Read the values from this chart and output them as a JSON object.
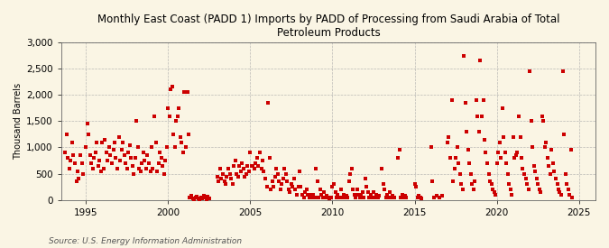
{
  "title": "Monthly East Coast (PADD 1) Imports by PADD of Processing from Saudi Arabia of Total\nPetroleum Products",
  "ylabel": "Thousand Barrels",
  "source": "Source: U.S. Energy Information Administration",
  "background_color": "#faf5e4",
  "marker_color": "#cc0000",
  "xlim": [
    1993.5,
    2026.0
  ],
  "ylim": [
    0,
    3000
  ],
  "yticks": [
    0,
    500,
    1000,
    1500,
    2000,
    2500,
    3000
  ],
  "xticks": [
    1995,
    2000,
    2005,
    2010,
    2015,
    2020,
    2025
  ],
  "data": [
    [
      1993.75,
      900
    ],
    [
      1993.83,
      1250
    ],
    [
      1993.92,
      800
    ],
    [
      1994.0,
      600
    ],
    [
      1994.08,
      750
    ],
    [
      1994.17,
      1100
    ],
    [
      1994.25,
      850
    ],
    [
      1994.33,
      700
    ],
    [
      1994.42,
      350
    ],
    [
      1994.5,
      550
    ],
    [
      1994.58,
      400
    ],
    [
      1994.67,
      850
    ],
    [
      1994.75,
      700
    ],
    [
      1994.83,
      500
    ],
    [
      1995.0,
      1000
    ],
    [
      1995.08,
      1450
    ],
    [
      1995.17,
      1250
    ],
    [
      1995.25,
      850
    ],
    [
      1995.33,
      700
    ],
    [
      1995.42,
      600
    ],
    [
      1995.5,
      800
    ],
    [
      1995.58,
      900
    ],
    [
      1995.67,
      1100
    ],
    [
      1995.75,
      650
    ],
    [
      1995.83,
      750
    ],
    [
      1995.92,
      550
    ],
    [
      1996.0,
      1100
    ],
    [
      1996.08,
      600
    ],
    [
      1996.17,
      1150
    ],
    [
      1996.25,
      900
    ],
    [
      1996.33,
      750
    ],
    [
      1996.42,
      1000
    ],
    [
      1996.5,
      850
    ],
    [
      1996.58,
      700
    ],
    [
      1996.67,
      950
    ],
    [
      1996.75,
      1100
    ],
    [
      1996.83,
      800
    ],
    [
      1996.92,
      600
    ],
    [
      1997.0,
      1200
    ],
    [
      1997.08,
      750
    ],
    [
      1997.17,
      950
    ],
    [
      1997.25,
      1100
    ],
    [
      1997.33,
      850
    ],
    [
      1997.42,
      700
    ],
    [
      1997.5,
      600
    ],
    [
      1997.58,
      900
    ],
    [
      1997.67,
      1050
    ],
    [
      1997.75,
      800
    ],
    [
      1997.83,
      650
    ],
    [
      1997.92,
      500
    ],
    [
      1998.0,
      800
    ],
    [
      1998.08,
      1500
    ],
    [
      1998.17,
      1000
    ],
    [
      1998.25,
      600
    ],
    [
      1998.33,
      550
    ],
    [
      1998.42,
      700
    ],
    [
      1998.5,
      900
    ],
    [
      1998.58,
      750
    ],
    [
      1998.67,
      600
    ],
    [
      1998.75,
      850
    ],
    [
      1998.83,
      700
    ],
    [
      1998.92,
      550
    ],
    [
      1999.0,
      1000
    ],
    [
      1999.08,
      600
    ],
    [
      1999.17,
      1600
    ],
    [
      1999.25,
      1100
    ],
    [
      1999.33,
      550
    ],
    [
      1999.42,
      700
    ],
    [
      1999.5,
      900
    ],
    [
      1999.58,
      800
    ],
    [
      1999.67,
      650
    ],
    [
      1999.75,
      500
    ],
    [
      1999.83,
      750
    ],
    [
      1999.92,
      1000
    ],
    [
      2000.0,
      1750
    ],
    [
      2000.08,
      1600
    ],
    [
      2000.17,
      2100
    ],
    [
      2000.25,
      2150
    ],
    [
      2000.33,
      1250
    ],
    [
      2000.42,
      1000
    ],
    [
      2000.5,
      1500
    ],
    [
      2000.58,
      1600
    ],
    [
      2000.67,
      1750
    ],
    [
      2000.75,
      1200
    ],
    [
      2000.83,
      1100
    ],
    [
      2000.92,
      900
    ],
    [
      2001.0,
      2050
    ],
    [
      2001.08,
      1000
    ],
    [
      2001.17,
      2050
    ],
    [
      2001.25,
      1250
    ],
    [
      2001.33,
      50
    ],
    [
      2001.42,
      80
    ],
    [
      2001.5,
      30
    ],
    [
      2001.58,
      20
    ],
    [
      2001.67,
      40
    ],
    [
      2001.75,
      60
    ],
    [
      2001.83,
      30
    ],
    [
      2001.92,
      20
    ],
    [
      2002.0,
      50
    ],
    [
      2002.08,
      30
    ],
    [
      2002.17,
      80
    ],
    [
      2002.25,
      40
    ],
    [
      2002.33,
      20
    ],
    [
      2002.42,
      60
    ],
    [
      2002.5,
      30
    ],
    [
      2003.0,
      450
    ],
    [
      2003.08,
      350
    ],
    [
      2003.17,
      600
    ],
    [
      2003.25,
      400
    ],
    [
      2003.33,
      500
    ],
    [
      2003.42,
      350
    ],
    [
      2003.5,
      300
    ],
    [
      2003.58,
      450
    ],
    [
      2003.67,
      600
    ],
    [
      2003.75,
      500
    ],
    [
      2003.83,
      400
    ],
    [
      2003.92,
      300
    ],
    [
      2004.0,
      650
    ],
    [
      2004.08,
      750
    ],
    [
      2004.17,
      500
    ],
    [
      2004.25,
      450
    ],
    [
      2004.33,
      650
    ],
    [
      2004.42,
      550
    ],
    [
      2004.5,
      700
    ],
    [
      2004.58,
      600
    ],
    [
      2004.67,
      450
    ],
    [
      2004.75,
      500
    ],
    [
      2004.83,
      650
    ],
    [
      2004.92,
      550
    ],
    [
      2005.0,
      900
    ],
    [
      2005.08,
      650
    ],
    [
      2005.17,
      650
    ],
    [
      2005.25,
      600
    ],
    [
      2005.33,
      700
    ],
    [
      2005.42,
      800
    ],
    [
      2005.5,
      650
    ],
    [
      2005.58,
      900
    ],
    [
      2005.67,
      600
    ],
    [
      2005.75,
      750
    ],
    [
      2005.83,
      550
    ],
    [
      2005.92,
      400
    ],
    [
      2006.0,
      250
    ],
    [
      2006.08,
      1850
    ],
    [
      2006.17,
      800
    ],
    [
      2006.25,
      200
    ],
    [
      2006.33,
      350
    ],
    [
      2006.42,
      250
    ],
    [
      2006.5,
      450
    ],
    [
      2006.58,
      600
    ],
    [
      2006.67,
      500
    ],
    [
      2006.75,
      350
    ],
    [
      2006.83,
      200
    ],
    [
      2006.92,
      300
    ],
    [
      2007.0,
      400
    ],
    [
      2007.08,
      600
    ],
    [
      2007.17,
      500
    ],
    [
      2007.25,
      350
    ],
    [
      2007.33,
      200
    ],
    [
      2007.42,
      150
    ],
    [
      2007.5,
      300
    ],
    [
      2007.58,
      250
    ],
    [
      2007.67,
      400
    ],
    [
      2007.75,
      200
    ],
    [
      2007.83,
      100
    ],
    [
      2007.92,
      250
    ],
    [
      2008.0,
      550
    ],
    [
      2008.08,
      250
    ],
    [
      2008.17,
      100
    ],
    [
      2008.25,
      50
    ],
    [
      2008.33,
      150
    ],
    [
      2008.42,
      200
    ],
    [
      2008.5,
      100
    ],
    [
      2008.58,
      50
    ],
    [
      2008.67,
      100
    ],
    [
      2008.75,
      50
    ],
    [
      2008.83,
      100
    ],
    [
      2008.92,
      50
    ],
    [
      2009.0,
      600
    ],
    [
      2009.08,
      350
    ],
    [
      2009.17,
      50
    ],
    [
      2009.25,
      200
    ],
    [
      2009.33,
      100
    ],
    [
      2009.42,
      50
    ],
    [
      2009.5,
      150
    ],
    [
      2009.58,
      50
    ],
    [
      2009.67,
      80
    ],
    [
      2009.75,
      50
    ],
    [
      2009.83,
      30
    ],
    [
      2009.92,
      50
    ],
    [
      2010.0,
      250
    ],
    [
      2010.08,
      300
    ],
    [
      2010.17,
      150
    ],
    [
      2010.25,
      50
    ],
    [
      2010.33,
      100
    ],
    [
      2010.42,
      50
    ],
    [
      2010.5,
      200
    ],
    [
      2010.58,
      50
    ],
    [
      2010.67,
      100
    ],
    [
      2010.75,
      50
    ],
    [
      2010.83,
      80
    ],
    [
      2010.92,
      50
    ],
    [
      2011.0,
      350
    ],
    [
      2011.08,
      500
    ],
    [
      2011.17,
      600
    ],
    [
      2011.25,
      200
    ],
    [
      2011.33,
      100
    ],
    [
      2011.42,
      50
    ],
    [
      2011.5,
      200
    ],
    [
      2011.58,
      100
    ],
    [
      2011.67,
      50
    ],
    [
      2011.75,
      100
    ],
    [
      2011.83,
      150
    ],
    [
      2011.92,
      50
    ],
    [
      2012.0,
      400
    ],
    [
      2012.08,
      250
    ],
    [
      2012.17,
      150
    ],
    [
      2012.25,
      50
    ],
    [
      2012.33,
      100
    ],
    [
      2012.42,
      50
    ],
    [
      2012.5,
      150
    ],
    [
      2012.58,
      50
    ],
    [
      2012.67,
      100
    ],
    [
      2012.75,
      50
    ],
    [
      2012.83,
      80
    ],
    [
      2013.0,
      600
    ],
    [
      2013.08,
      300
    ],
    [
      2013.17,
      200
    ],
    [
      2013.25,
      50
    ],
    [
      2013.33,
      100
    ],
    [
      2013.42,
      50
    ],
    [
      2013.5,
      150
    ],
    [
      2013.58,
      50
    ],
    [
      2013.67,
      80
    ],
    [
      2013.75,
      50
    ],
    [
      2014.0,
      800
    ],
    [
      2014.08,
      950
    ],
    [
      2014.17,
      50
    ],
    [
      2014.25,
      100
    ],
    [
      2014.33,
      50
    ],
    [
      2014.42,
      80
    ],
    [
      2014.5,
      50
    ],
    [
      2015.0,
      300
    ],
    [
      2015.08,
      250
    ],
    [
      2015.17,
      50
    ],
    [
      2015.25,
      80
    ],
    [
      2015.33,
      50
    ],
    [
      2015.42,
      30
    ],
    [
      2016.0,
      1000
    ],
    [
      2016.08,
      350
    ],
    [
      2016.17,
      50
    ],
    [
      2016.33,
      80
    ],
    [
      2016.5,
      50
    ],
    [
      2016.67,
      80
    ],
    [
      2017.0,
      1100
    ],
    [
      2017.08,
      1200
    ],
    [
      2017.17,
      800
    ],
    [
      2017.25,
      1900
    ],
    [
      2017.33,
      350
    ],
    [
      2017.42,
      600
    ],
    [
      2017.5,
      800
    ],
    [
      2017.58,
      1000
    ],
    [
      2017.67,
      700
    ],
    [
      2017.75,
      500
    ],
    [
      2017.83,
      300
    ],
    [
      2017.92,
      200
    ],
    [
      2018.0,
      2750
    ],
    [
      2018.08,
      1850
    ],
    [
      2018.17,
      1300
    ],
    [
      2018.25,
      950
    ],
    [
      2018.33,
      700
    ],
    [
      2018.42,
      500
    ],
    [
      2018.5,
      300
    ],
    [
      2018.58,
      200
    ],
    [
      2018.67,
      350
    ],
    [
      2018.75,
      1900
    ],
    [
      2018.83,
      1600
    ],
    [
      2018.92,
      1300
    ],
    [
      2019.0,
      2650
    ],
    [
      2019.08,
      1600
    ],
    [
      2019.17,
      1900
    ],
    [
      2019.25,
      1150
    ],
    [
      2019.33,
      900
    ],
    [
      2019.42,
      700
    ],
    [
      2019.5,
      500
    ],
    [
      2019.58,
      350
    ],
    [
      2019.67,
      300
    ],
    [
      2019.75,
      200
    ],
    [
      2019.83,
      150
    ],
    [
      2019.92,
      100
    ],
    [
      2020.0,
      700
    ],
    [
      2020.08,
      900
    ],
    [
      2020.17,
      1100
    ],
    [
      2020.25,
      800
    ],
    [
      2020.33,
      1750
    ],
    [
      2020.42,
      1200
    ],
    [
      2020.5,
      900
    ],
    [
      2020.58,
      700
    ],
    [
      2020.67,
      500
    ],
    [
      2020.75,
      300
    ],
    [
      2020.83,
      200
    ],
    [
      2020.92,
      100
    ],
    [
      2021.0,
      1200
    ],
    [
      2021.08,
      800
    ],
    [
      2021.17,
      850
    ],
    [
      2021.25,
      900
    ],
    [
      2021.33,
      1600
    ],
    [
      2021.42,
      1200
    ],
    [
      2021.5,
      800
    ],
    [
      2021.58,
      600
    ],
    [
      2021.67,
      500
    ],
    [
      2021.75,
      400
    ],
    [
      2021.83,
      300
    ],
    [
      2021.92,
      200
    ],
    [
      2022.0,
      2450
    ],
    [
      2022.08,
      1500
    ],
    [
      2022.17,
      1000
    ],
    [
      2022.25,
      650
    ],
    [
      2022.33,
      550
    ],
    [
      2022.42,
      400
    ],
    [
      2022.5,
      300
    ],
    [
      2022.58,
      200
    ],
    [
      2022.67,
      150
    ],
    [
      2022.75,
      1600
    ],
    [
      2022.83,
      1500
    ],
    [
      2022.92,
      1000
    ],
    [
      2023.0,
      1100
    ],
    [
      2023.08,
      800
    ],
    [
      2023.17,
      650
    ],
    [
      2023.25,
      500
    ],
    [
      2023.33,
      950
    ],
    [
      2023.42,
      700
    ],
    [
      2023.5,
      550
    ],
    [
      2023.58,
      400
    ],
    [
      2023.67,
      300
    ],
    [
      2023.75,
      200
    ],
    [
      2023.83,
      150
    ],
    [
      2023.92,
      100
    ],
    [
      2024.0,
      2450
    ],
    [
      2024.08,
      1250
    ],
    [
      2024.17,
      500
    ],
    [
      2024.25,
      300
    ],
    [
      2024.33,
      200
    ],
    [
      2024.42,
      100
    ],
    [
      2024.5,
      950
    ],
    [
      2024.58,
      50
    ]
  ]
}
